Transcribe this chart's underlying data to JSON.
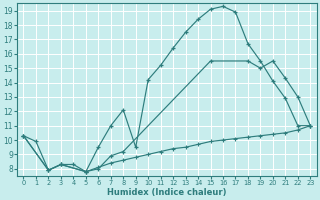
{
  "xlabel": "Humidex (Indice chaleur)",
  "bg_color": "#c8eded",
  "grid_color": "#b8d8d8",
  "line_color": "#2e7d7d",
  "xlim": [
    -0.5,
    23.5
  ],
  "ylim": [
    7.5,
    19.5
  ],
  "yticks": [
    8,
    9,
    10,
    11,
    12,
    13,
    14,
    15,
    16,
    17,
    18,
    19
  ],
  "xticks": [
    0,
    1,
    2,
    3,
    4,
    5,
    6,
    7,
    8,
    9,
    10,
    11,
    12,
    13,
    14,
    15,
    16,
    17,
    18,
    19,
    20,
    21,
    22,
    23
  ],
  "curve1_x": [
    0,
    1,
    2,
    3,
    4,
    5,
    6,
    7,
    8,
    9,
    10,
    11,
    12,
    13,
    14,
    15,
    16,
    17,
    18,
    19,
    20,
    21,
    22,
    23
  ],
  "curve1_y": [
    10.3,
    9.9,
    7.9,
    8.3,
    8.3,
    7.8,
    9.5,
    11.0,
    12.1,
    9.5,
    14.2,
    15.2,
    16.4,
    17.5,
    18.4,
    19.1,
    19.3,
    18.9,
    16.7,
    15.5,
    14.1,
    12.9,
    11.0,
    11.0
  ],
  "curve2_x": [
    0,
    2,
    3,
    5,
    6,
    7,
    8,
    15,
    18,
    19,
    20,
    21,
    22,
    23
  ],
  "curve2_y": [
    10.3,
    7.9,
    8.3,
    7.8,
    8.0,
    8.9,
    9.2,
    15.5,
    15.5,
    15.0,
    15.5,
    14.3,
    13.0,
    11.0
  ],
  "curve3_x": [
    0,
    2,
    3,
    5,
    6,
    7,
    8,
    9,
    10,
    11,
    12,
    13,
    14,
    15,
    16,
    17,
    18,
    19,
    20,
    21,
    22,
    23
  ],
  "curve3_y": [
    10.3,
    7.9,
    8.3,
    7.8,
    8.1,
    8.4,
    8.6,
    8.8,
    9.0,
    9.2,
    9.4,
    9.5,
    9.7,
    9.9,
    10.0,
    10.1,
    10.2,
    10.3,
    10.4,
    10.5,
    10.7,
    11.0
  ]
}
